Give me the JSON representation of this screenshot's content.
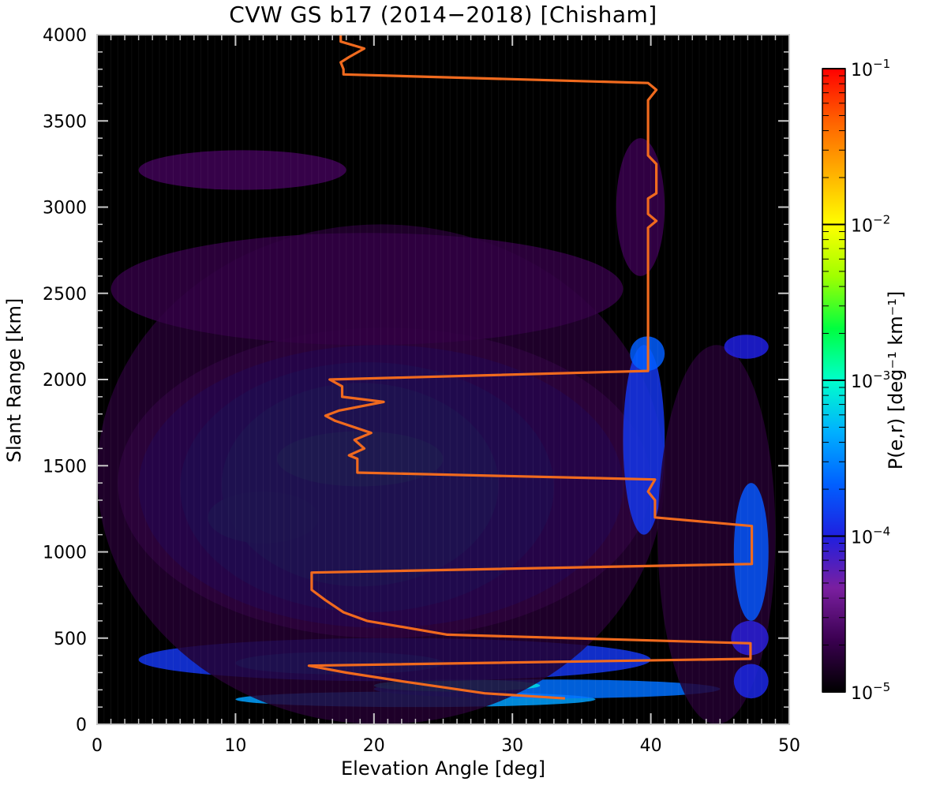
{
  "chart_data": {
    "type": "heatmap",
    "title": "CVW GS b17 (2014−2018) [Chisham]",
    "xlabel": "Elevation Angle [deg]",
    "ylabel": "Slant Range [km]",
    "xlim": [
      0,
      50
    ],
    "ylim": [
      0,
      4000
    ],
    "x_ticks": [
      "0",
      "10",
      "20",
      "30",
      "40",
      "50"
    ],
    "y_ticks": [
      "0",
      "500",
      "1000",
      "1500",
      "2000",
      "2500",
      "3000",
      "3500",
      "4000"
    ],
    "colorbar": {
      "label": "P(e,r) [deg⁻¹ km⁻¹]",
      "scale": "log",
      "range": [
        1e-05,
        0.1
      ],
      "ticks": [
        {
          "base": "10",
          "exp": "−5"
        },
        {
          "base": "10",
          "exp": "−4"
        },
        {
          "base": "10",
          "exp": "−3"
        },
        {
          "base": "10",
          "exp": "−2"
        },
        {
          "base": "10",
          "exp": "−1"
        }
      ],
      "colors": [
        "#000000",
        "#3a0050",
        "#7a1fa0",
        "#1f1fe0",
        "#0060ff",
        "#00b0ff",
        "#00ffcc",
        "#00ff40",
        "#a0ff00",
        "#ffff00",
        "#ffb000",
        "#ff6000",
        "#ff0000"
      ]
    },
    "max_curve": {
      "color": "#f06a1e",
      "points": [
        [
          33.8,
          150
        ],
        [
          28,
          180
        ],
        [
          22,
          250
        ],
        [
          18,
          300
        ],
        [
          15.3,
          340
        ],
        [
          47.2,
          380
        ],
        [
          47.2,
          470
        ],
        [
          25.3,
          520
        ],
        [
          19.5,
          600
        ],
        [
          17.8,
          650
        ],
        [
          16.5,
          720
        ],
        [
          15.5,
          780
        ],
        [
          15.5,
          880
        ],
        [
          47.3,
          930
        ],
        [
          47.3,
          1150
        ],
        [
          40.3,
          1200
        ],
        [
          40.3,
          1300
        ],
        [
          39.8,
          1350
        ],
        [
          40.3,
          1420
        ],
        [
          18.8,
          1460
        ],
        [
          18.8,
          1540
        ],
        [
          18.2,
          1560
        ],
        [
          19.3,
          1600
        ],
        [
          18.6,
          1650
        ],
        [
          19.8,
          1690
        ],
        [
          17.2,
          1760
        ],
        [
          16.5,
          1790
        ],
        [
          17.5,
          1820
        ],
        [
          20.7,
          1870
        ],
        [
          17.7,
          1900
        ],
        [
          17.7,
          1960
        ],
        [
          16.8,
          2000
        ],
        [
          39.8,
          2050
        ],
        [
          39.8,
          2880
        ],
        [
          40.4,
          2920
        ],
        [
          39.8,
          2960
        ],
        [
          39.8,
          3050
        ],
        [
          40.4,
          3080
        ],
        [
          40.4,
          3250
        ],
        [
          39.8,
          3300
        ],
        [
          39.8,
          3620
        ],
        [
          40.4,
          3680
        ],
        [
          39.8,
          3720
        ],
        [
          17.8,
          3770
        ],
        [
          17.8,
          3800
        ],
        [
          17.6,
          3840
        ],
        [
          18.2,
          3870
        ],
        [
          19.3,
          3920
        ],
        [
          17.6,
          3960
        ],
        [
          17.6,
          4000
        ]
      ]
    },
    "density_features": [
      {
        "x": [
          10,
          36
        ],
        "y": [
          100,
          190
        ],
        "level": 0.4
      },
      {
        "x": [
          20,
          45
        ],
        "y": [
          150,
          260
        ],
        "level": 0.35
      },
      {
        "x": [
          20,
          32
        ],
        "y": [
          190,
          260
        ],
        "level": 0.46
      },
      {
        "x": [
          3,
          40
        ],
        "y": [
          250,
          500
        ],
        "level": 0.28
      },
      {
        "x": [
          10,
          25
        ],
        "y": [
          290,
          420
        ],
        "level": 0.36
      },
      {
        "x": [
          1.5,
          40
        ],
        "y": [
          500,
          2300
        ],
        "level": 0.13
      },
      {
        "x": [
          3,
          38
        ],
        "y": [
          560,
          2200
        ],
        "level": 0.24
      },
      {
        "x": [
          6,
          33
        ],
        "y": [
          650,
          2100
        ],
        "level": 0.31
      },
      {
        "x": [
          9,
          29
        ],
        "y": [
          800,
          1980
        ],
        "level": 0.36
      },
      {
        "x": [
          13,
          25
        ],
        "y": [
          1380,
          1700
        ],
        "level": 0.42
      },
      {
        "x": [
          8,
          16
        ],
        "y": [
          1050,
          1350
        ],
        "level": 0.37
      },
      {
        "x": [
          0,
          41
        ],
        "y": [
          0,
          2900
        ],
        "level": 0.05
      },
      {
        "x": [
          1,
          38
        ],
        "y": [
          2200,
          2850
        ],
        "level": 0.07
      },
      {
        "x": [
          3,
          18
        ],
        "y": [
          3100,
          3330
        ],
        "level": 0.09
      },
      {
        "x": [
          37.5,
          41
        ],
        "y": [
          2600,
          3400
        ],
        "level": 0.08
      },
      {
        "x": [
          38,
          41
        ],
        "y": [
          1100,
          2200
        ],
        "level": 0.28
      },
      {
        "x": [
          38.5,
          41
        ],
        "y": [
          2050,
          2250
        ],
        "level": 0.33
      },
      {
        "x": [
          40.5,
          49
        ],
        "y": [
          0,
          2200
        ],
        "level": 0.05
      },
      {
        "x": [
          46,
          48.5
        ],
        "y": [
          600,
          1400
        ],
        "level": 0.32
      },
      {
        "x": [
          45.8,
          48.5
        ],
        "y": [
          400,
          600
        ],
        "level": 0.24
      },
      {
        "x": [
          45.3,
          48.5
        ],
        "y": [
          2120,
          2260
        ],
        "level": 0.25
      },
      {
        "x": [
          46,
          48.5
        ],
        "y": [
          150,
          350
        ],
        "level": 0.26
      }
    ]
  }
}
